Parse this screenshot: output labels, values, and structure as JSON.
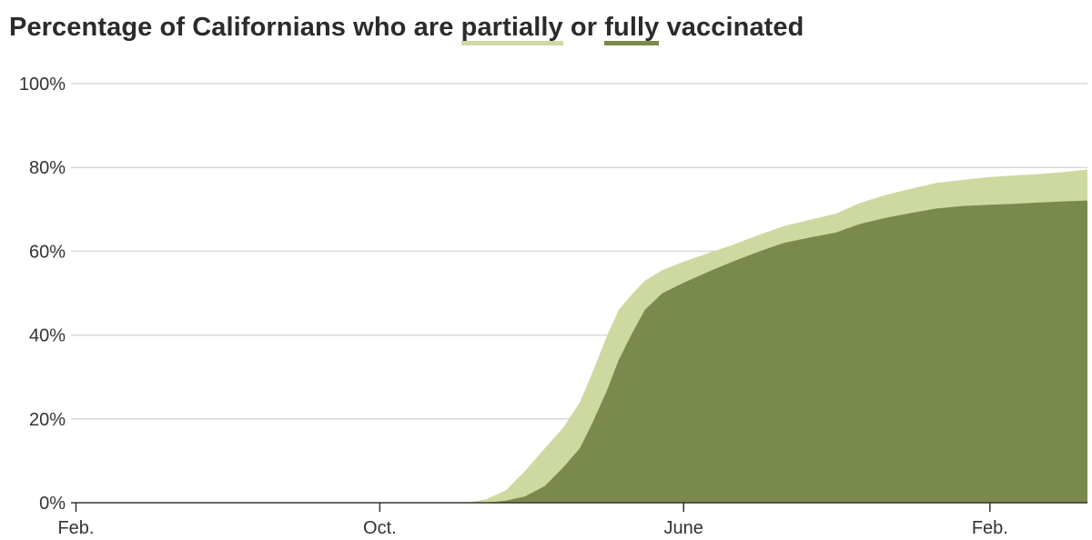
{
  "title": {
    "prefix": "Percentage of Californians who are ",
    "partially": "partially",
    "middle": " or ",
    "fully": "fully",
    "suffix": " vaccinated"
  },
  "colors": {
    "partially": "#cdd9a0",
    "fully": "#7a8a4d",
    "grid": "#d9d9d9",
    "axis": "#333333"
  },
  "chart_data": {
    "type": "area",
    "title": "Percentage of Californians who are partially or fully vaccinated",
    "xlabel": "",
    "ylabel": "",
    "ylim": [
      0,
      100
    ],
    "xlim": [
      "2020-01-28",
      "2022-04-20"
    ],
    "yticks": [
      0,
      20,
      40,
      60,
      80,
      100
    ],
    "ytick_labels": [
      "0%",
      "20%",
      "40%",
      "60%",
      "80%",
      "100%"
    ],
    "xticks": [
      {
        "date": "2020-02-01",
        "label": "Feb."
      },
      {
        "date": "2020-10-01",
        "label": "Oct."
      },
      {
        "date": "2021-06-01",
        "label": "June"
      },
      {
        "date": "2022-02-01",
        "label": "Feb."
      }
    ],
    "grid": true,
    "series": [
      {
        "name": "partially",
        "x": [
          "2020-12-10",
          "2020-12-25",
          "2021-01-10",
          "2021-01-25",
          "2021-02-10",
          "2021-02-25",
          "2021-03-10",
          "2021-03-20",
          "2021-04-01",
          "2021-04-10",
          "2021-04-20",
          "2021-05-01",
          "2021-05-15",
          "2021-06-01",
          "2021-06-20",
          "2021-07-10",
          "2021-08-01",
          "2021-08-20",
          "2021-09-10",
          "2021-10-01",
          "2021-10-20",
          "2021-11-10",
          "2021-12-01",
          "2021-12-20",
          "2022-01-10",
          "2022-02-01",
          "2022-02-20",
          "2022-03-10",
          "2022-04-01",
          "2022-04-20"
        ],
        "values": [
          0,
          0.8,
          3,
          7.5,
          13,
          18,
          24,
          31,
          40,
          46,
          49.5,
          53,
          55.5,
          57.5,
          59.5,
          61.5,
          64,
          66,
          67.5,
          69,
          71.5,
          73.5,
          75,
          76.3,
          77,
          77.7,
          78.1,
          78.4,
          78.9,
          79.5
        ]
      },
      {
        "name": "fully",
        "x": [
          "2020-12-25",
          "2021-01-10",
          "2021-01-25",
          "2021-02-10",
          "2021-02-25",
          "2021-03-10",
          "2021-03-20",
          "2021-04-01",
          "2021-04-10",
          "2021-04-20",
          "2021-05-01",
          "2021-05-15",
          "2021-06-01",
          "2021-06-20",
          "2021-07-10",
          "2021-08-01",
          "2021-08-20",
          "2021-09-10",
          "2021-10-01",
          "2021-10-20",
          "2021-11-10",
          "2021-12-01",
          "2021-12-20",
          "2022-01-10",
          "2022-02-01",
          "2022-02-20",
          "2022-03-10",
          "2022-04-01",
          "2022-04-20"
        ],
        "values": [
          0,
          0.5,
          1.5,
          4,
          8.5,
          13,
          19,
          27,
          34,
          40,
          46,
          50,
          52.5,
          55,
          57.5,
          60,
          62,
          63.3,
          64.5,
          66.5,
          68,
          69.2,
          70.2,
          70.8,
          71.1,
          71.3,
          71.6,
          71.9,
          72.1
        ]
      }
    ]
  }
}
